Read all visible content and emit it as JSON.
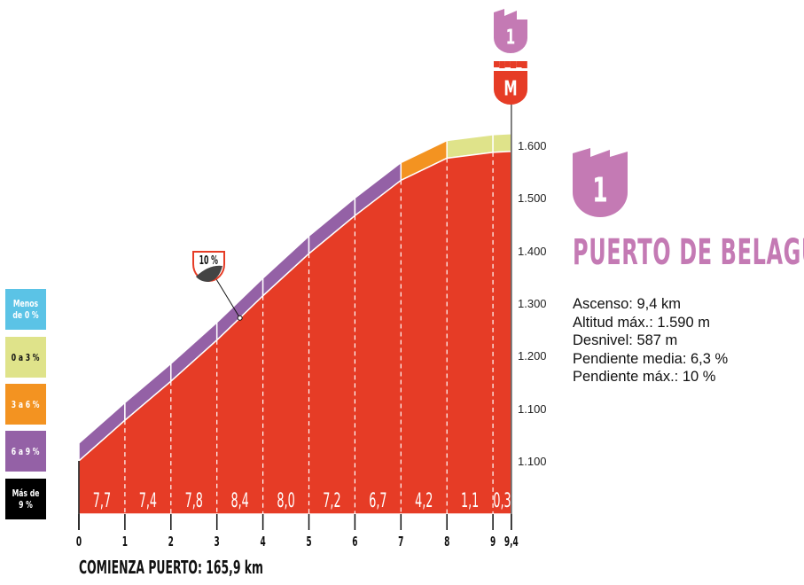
{
  "chart_data": {
    "type": "area",
    "title": "PUERTO DE BELAGUA",
    "category_badge": "1",
    "summit_badge": "M",
    "x_ticks": [
      "0",
      "1",
      "2",
      "3",
      "4",
      "5",
      "6",
      "7",
      "8",
      "9",
      "9,4"
    ],
    "x_km": [
      0,
      1,
      2,
      3,
      4,
      5,
      6,
      7,
      8,
      9,
      9.4
    ],
    "altitude_m": [
      1003,
      1080,
      1154,
      1232,
      1316,
      1396,
      1468,
      1535,
      1577,
      1588,
      1590
    ],
    "segment_gradients": [
      "7,7",
      "7,4",
      "7,8",
      "8,4",
      "8,0",
      "7,2",
      "6,7",
      "4,2",
      "1,1",
      "0,3"
    ],
    "segment_gradient_values": [
      7.7,
      7.4,
      7.8,
      8.4,
      8.0,
      7.2,
      6.7,
      4.2,
      1.1,
      0.3
    ],
    "y_tick_labels": [
      "1.100",
      "1.100",
      "1.200",
      "1.300",
      "1.400",
      "1.500",
      "1.600"
    ],
    "max_gradient_marker": {
      "label": "10 %",
      "km": 3.5
    },
    "footer": "COMIENZA PUERTO: 165,9 km",
    "legend": [
      {
        "label": "Menos de 0 %",
        "color": "#5bc3e6"
      },
      {
        "label": "0 a 3 %",
        "color": "#dfe38a"
      },
      {
        "label": "3 a 6 %",
        "color": "#f39321"
      },
      {
        "label": "6 a 9 %",
        "color": "#9461a6"
      },
      {
        "label": "Más de 9 %",
        "color": "#000000"
      }
    ],
    "profile_color": "#e63c26",
    "badge_color": "#c47ab4"
  },
  "stats": [
    "Ascenso: 9,4 km",
    "Altitud máx.: 1.590 m",
    "Desnivel: 587 m",
    "Pendiente media: 6,3 %",
    "Pendiente máx.: 10 %"
  ]
}
